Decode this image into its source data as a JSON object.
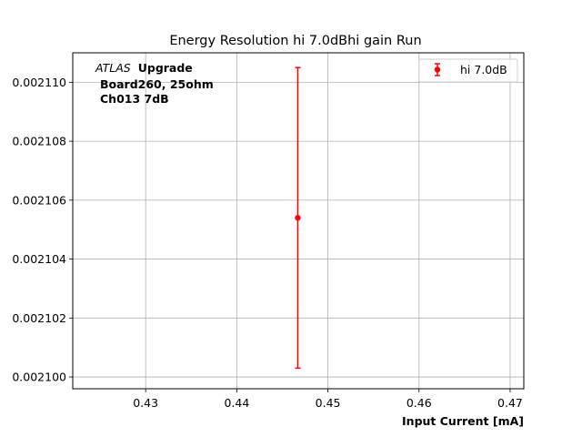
{
  "chart_data": {
    "type": "scatter",
    "title": "Energy Resolution hi 7.0dBhi gain Run",
    "xlabel": "Input Current [mA]",
    "ylabel": "",
    "xlim": [
      0.422,
      0.4715
    ],
    "ylim": [
      0.0020996,
      0.002111
    ],
    "x_ticks": [
      0.43,
      0.44,
      0.45,
      0.46,
      0.47
    ],
    "x_tick_labels": [
      "0.43",
      "0.44",
      "0.45",
      "0.46",
      "0.47"
    ],
    "y_ticks": [
      0.0021,
      0.002102,
      0.002104,
      0.002106,
      0.002108,
      0.00211
    ],
    "y_tick_labels": [
      "0.002100",
      "0.002102",
      "0.002104",
      "0.002106",
      "0.002108",
      "0.002110"
    ],
    "grid": true,
    "legend_position": "top-right",
    "series": [
      {
        "name": "hi 7.0dB",
        "color": "#ff0000",
        "points": [
          {
            "x": 0.4467,
            "y": 0.0021054,
            "yerr": 5.1e-06
          }
        ]
      }
    ],
    "annotation": {
      "atlas": "ATLAS",
      "upgrade": "Upgrade",
      "line2": "Board260, 25ohm",
      "line3": "Ch013 7dB"
    }
  }
}
